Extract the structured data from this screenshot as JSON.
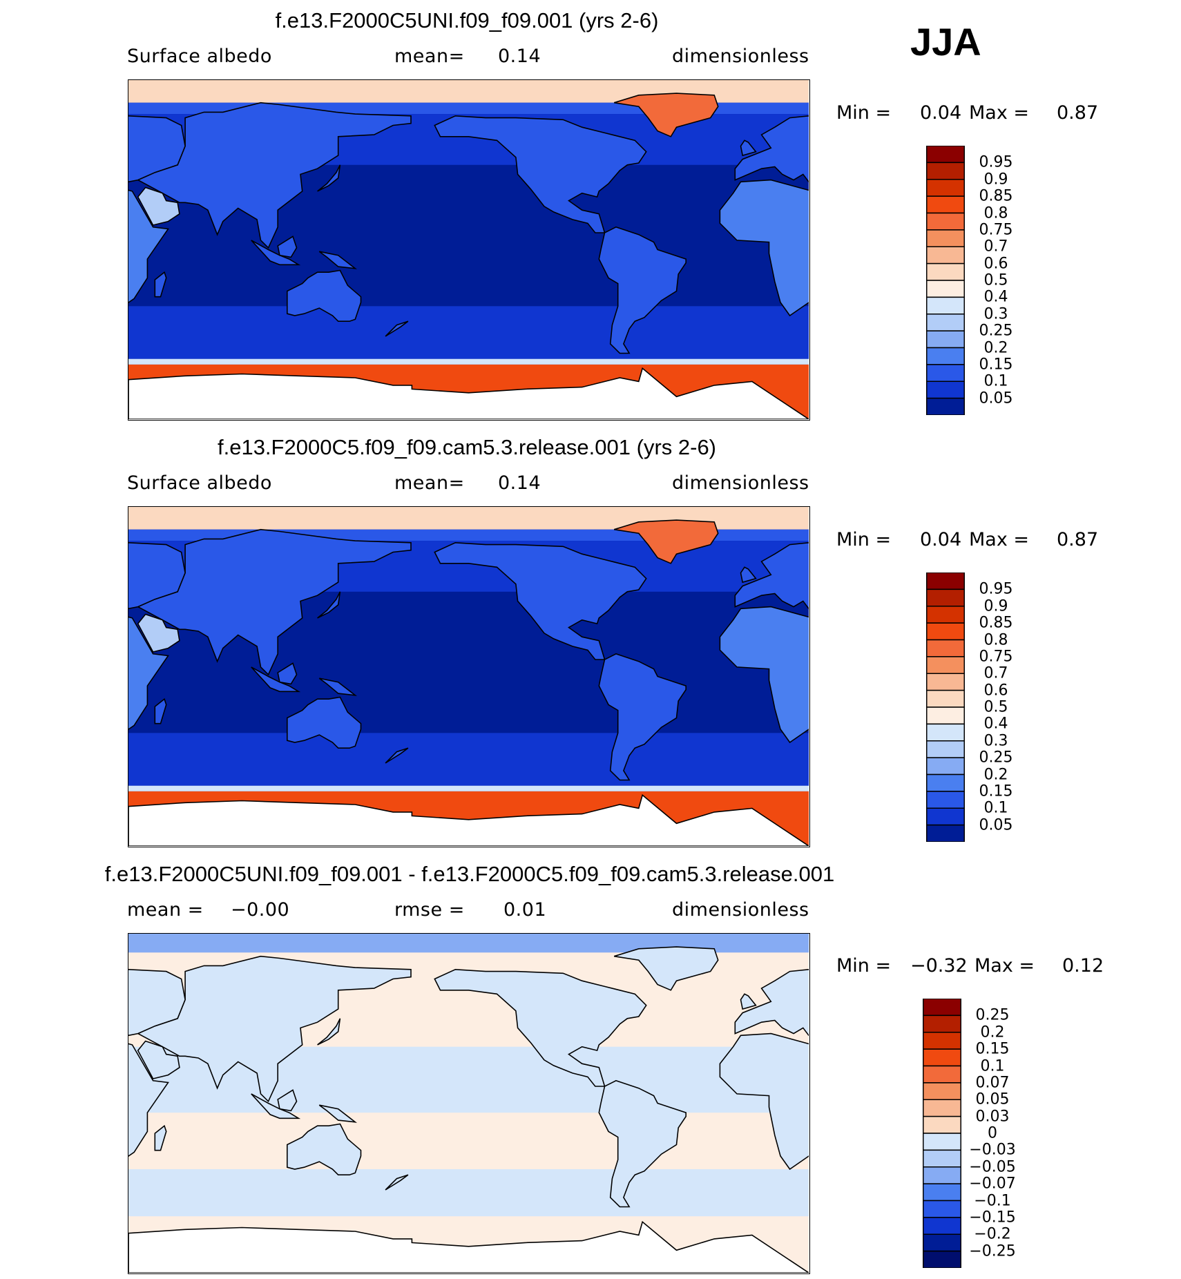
{
  "season": "JJA",
  "chart_data": [
    {
      "type": "heatmap",
      "title": "f.e13.F2000C5UNI.f09_f09.001 (yrs 2-6)",
      "variable": "Surface albedo",
      "stat_left": "mean=",
      "stat_value": "0.14",
      "units": "dimensionless",
      "min_label": "Min =",
      "min_value": "0.04",
      "max_label": "Max =",
      "max_value": "0.87",
      "colorbar_levels": [
        "0.95",
        "0.9",
        "0.85",
        "0.8",
        "0.75",
        "0.7",
        "0.6",
        "0.5",
        "0.4",
        "0.3",
        "0.25",
        "0.2",
        "0.15",
        "0.1",
        "0.05"
      ],
      "colorbar_colors": [
        "#8b0000",
        "#b31f00",
        "#d43200",
        "#f04a10",
        "#f26a3a",
        "#f4905e",
        "#f8b894",
        "#fbd9c0",
        "#fdeee2",
        "#d4e6fa",
        "#b2cdf7",
        "#86abf3",
        "#4a7ff0",
        "#2a58e8",
        "#1036d0",
        "#001d96"
      ],
      "palette": "albedo"
    },
    {
      "type": "heatmap",
      "title": "f.e13.F2000C5.f09_f09.cam5.3.release.001 (yrs 2-6)",
      "variable": "Surface albedo",
      "stat_left": "mean=",
      "stat_value": "0.14",
      "units": "dimensionless",
      "min_label": "Min =",
      "min_value": "0.04",
      "max_label": "Max =",
      "max_value": "0.87",
      "colorbar_levels": [
        "0.95",
        "0.9",
        "0.85",
        "0.8",
        "0.75",
        "0.7",
        "0.6",
        "0.5",
        "0.4",
        "0.3",
        "0.25",
        "0.2",
        "0.15",
        "0.1",
        "0.05"
      ],
      "colorbar_colors": [
        "#8b0000",
        "#b31f00",
        "#d43200",
        "#f04a10",
        "#f26a3a",
        "#f4905e",
        "#f8b894",
        "#fbd9c0",
        "#fdeee2",
        "#d4e6fa",
        "#b2cdf7",
        "#86abf3",
        "#4a7ff0",
        "#2a58e8",
        "#1036d0",
        "#001d96"
      ],
      "palette": "albedo"
    },
    {
      "type": "heatmap",
      "title": "f.e13.F2000C5UNI.f09_f09.001 - f.e13.F2000C5.f09_f09.cam5.3.release.001",
      "stat_left": "mean =",
      "stat_left_value": "−0.00",
      "stat_mid": "rmse =",
      "stat_mid_value": "0.01",
      "units": "dimensionless",
      "min_label": "Min =",
      "min_value": "−0.32",
      "max_label": "Max =",
      "max_value": "0.12",
      "colorbar_levels": [
        "0.25",
        "0.2",
        "0.15",
        "0.1",
        "0.07",
        "0.05",
        "0.03",
        "0",
        "−0.03",
        "−0.05",
        "−0.07",
        "−0.1",
        "−0.15",
        "−0.2",
        "−0.25"
      ],
      "colorbar_colors": [
        "#8b0000",
        "#b31f00",
        "#d43200",
        "#f04a10",
        "#f26a3a",
        "#f4905e",
        "#f8b894",
        "#fbd9c0",
        "#d4e6fa",
        "#b2cdf7",
        "#86abf3",
        "#4a7ff0",
        "#2a58e8",
        "#1036d0",
        "#001d96",
        "#000e6e"
      ],
      "palette": "diff"
    }
  ]
}
